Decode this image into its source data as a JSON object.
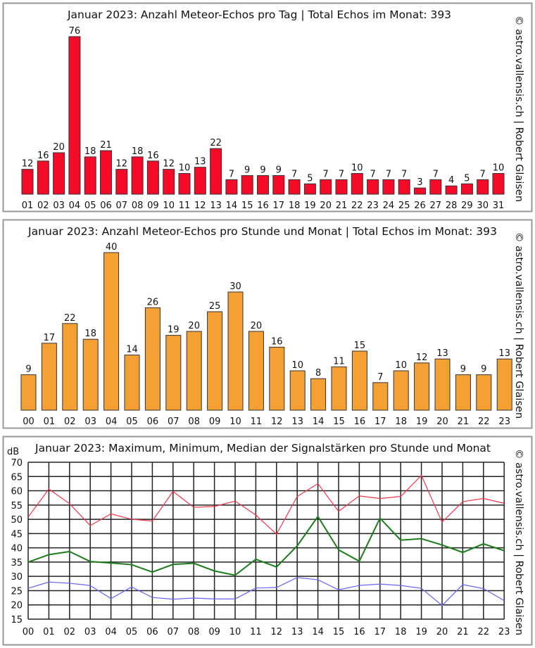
{
  "watermark": "© astro.vallensis.ch | Robert Glaisen",
  "colors": {
    "daily_bar": "#f50a28",
    "hourly_bar": "#f5a032",
    "max": "#f5344c",
    "median": "#1a7d1a",
    "min": "#6464ff"
  },
  "chart_data": [
    {
      "type": "bar",
      "title": "Januar 2023: Anzahl Meteor-Echos pro Tag | Total Echos im Monat: 393",
      "categories": [
        "01",
        "02",
        "03",
        "04",
        "05",
        "06",
        "07",
        "08",
        "09",
        "10",
        "11",
        "12",
        "13",
        "14",
        "15",
        "16",
        "17",
        "18",
        "19",
        "20",
        "21",
        "22",
        "23",
        "24",
        "25",
        "26",
        "27",
        "28",
        "29",
        "30",
        "31"
      ],
      "values": [
        12,
        16,
        20,
        76,
        18,
        21,
        12,
        18,
        16,
        12,
        10,
        13,
        22,
        7,
        9,
        9,
        9,
        7,
        5,
        7,
        7,
        10,
        7,
        7,
        7,
        3,
        7,
        4,
        5,
        7,
        10
      ],
      "grid": false
    },
    {
      "type": "bar",
      "title": "Januar 2023: Anzahl Meteor-Echos pro Stunde und Monat | Total Echos im Monat: 393",
      "categories": [
        "00",
        "01",
        "02",
        "03",
        "04",
        "05",
        "06",
        "07",
        "08",
        "09",
        "10",
        "11",
        "12",
        "13",
        "14",
        "15",
        "16",
        "17",
        "18",
        "19",
        "20",
        "21",
        "22",
        "23"
      ],
      "values": [
        9,
        17,
        22,
        18,
        40,
        14,
        26,
        19,
        20,
        25,
        30,
        20,
        16,
        10,
        8,
        11,
        15,
        7,
        10,
        12,
        13,
        9,
        9,
        13
      ],
      "grid": false
    },
    {
      "type": "line",
      "title": "Januar 2023: Maximum, Minimum, Median der Signalstärken pro Stunde und Monat",
      "ylabel": "dB",
      "ylim": [
        15,
        70
      ],
      "yticks": [
        "15",
        "20",
        "25",
        "30",
        "35",
        "40",
        "45",
        "50",
        "55",
        "60",
        "65",
        "70"
      ],
      "categories": [
        "00",
        "01",
        "02",
        "03",
        "04",
        "05",
        "06",
        "07",
        "08",
        "09",
        "10",
        "11",
        "12",
        "13",
        "14",
        "15",
        "16",
        "17",
        "18",
        "19",
        "20",
        "21",
        "22",
        "23"
      ],
      "grid": true,
      "series": [
        {
          "key": "max",
          "values": [
            50.8,
            60.6,
            55.5,
            47.8,
            51.9,
            50.0,
            49.4,
            59.8,
            54.2,
            54.5,
            56.4,
            51.5,
            44.8,
            58.0,
            62.5,
            52.8,
            58.2,
            57.3,
            58.0,
            65.4,
            49.0,
            56.2,
            57.3,
            55.6
          ]
        },
        {
          "key": "median",
          "values": [
            35.0,
            37.6,
            38.7,
            35.2,
            34.7,
            34.1,
            31.5,
            34.2,
            34.6,
            31.9,
            30.4,
            36.0,
            33.3,
            40.7,
            51.0,
            39.3,
            35.3,
            50.4,
            42.7,
            43.2,
            41.0,
            38.4,
            41.4,
            39.0
          ]
        },
        {
          "key": "min",
          "values": [
            25.8,
            28.0,
            27.6,
            26.8,
            22.2,
            26.3,
            22.6,
            22.0,
            22.4,
            22.1,
            22.1,
            25.9,
            26.1,
            29.6,
            28.8,
            25.3,
            26.8,
            27.3,
            26.8,
            25.8,
            19.8,
            27.1,
            25.7,
            21.5
          ]
        }
      ]
    }
  ]
}
